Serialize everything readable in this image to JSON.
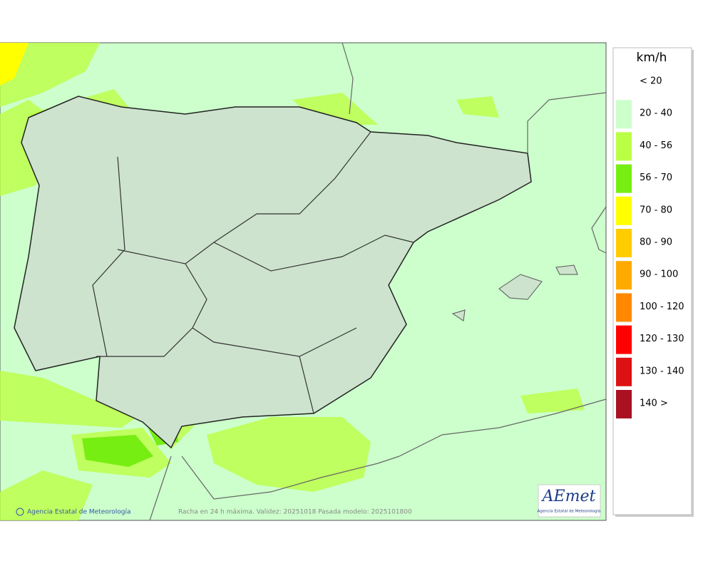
{
  "legend": {
    "title": "km/h",
    "items": [
      {
        "label": "< 20",
        "color": "#ffffff"
      },
      {
        "label": "20 - 40",
        "color": "#ccffcc"
      },
      {
        "label": "40 - 56",
        "color": "#bbff44"
      },
      {
        "label": "56 - 70",
        "color": "#77ee11"
      },
      {
        "label": "70 - 80",
        "color": "#ffff00"
      },
      {
        "label": "80 - 90",
        "color": "#ffcc00"
      },
      {
        "label": "90 - 100",
        "color": "#ffaa00"
      },
      {
        "label": "100 - 120",
        "color": "#ff8800"
      },
      {
        "label": "120 - 130",
        "color": "#ff0000"
      },
      {
        "label": "130 - 140",
        "color": "#dd1111"
      },
      {
        "label": "140 >",
        "color": "#aa1122"
      }
    ]
  },
  "footer": {
    "copyright": "Agencia Estatal de Meteorología",
    "caption": "Racha en 24 h máxima. Validez: 20251018 Pasada modelo: 2025101800"
  },
  "logo": {
    "name": "AEmet",
    "subtitle": "Agencia Estatal de Meteorología"
  }
}
